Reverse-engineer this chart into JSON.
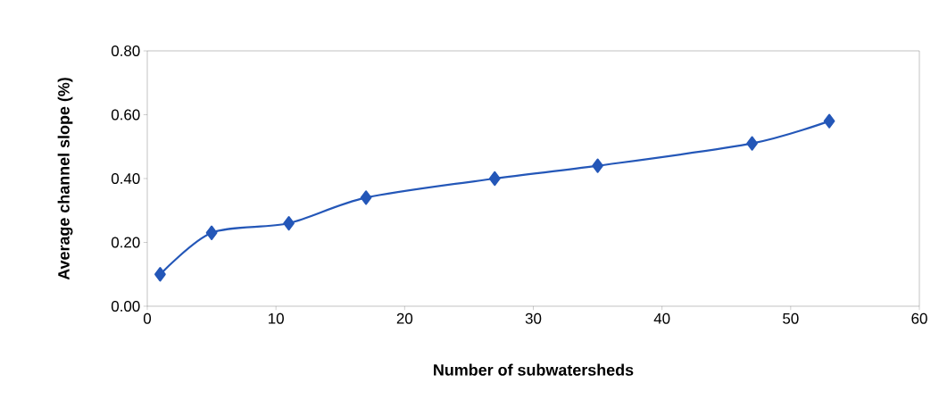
{
  "chart_data": {
    "type": "line",
    "xlabel": "Number of subwatersheds",
    "ylabel": "Average channel slope (%)",
    "x": [
      1,
      5,
      11,
      17,
      27,
      35,
      47,
      53
    ],
    "series": [
      {
        "color": "#2457b8",
        "values": [
          0.1,
          0.23,
          0.26,
          0.34,
          0.4,
          0.44,
          0.51,
          0.58
        ]
      }
    ],
    "xlim": [
      0,
      60
    ],
    "xticks": [
      0,
      10,
      20,
      30,
      40,
      50,
      60
    ],
    "ylim": [
      0,
      0.8
    ],
    "yticks": [
      {
        "value": 0,
        "label": "0.00"
      },
      {
        "value": 0.2,
        "label": "0.20"
      },
      {
        "value": 0.4,
        "label": "0.40"
      },
      {
        "value": 0.6,
        "label": "0.60"
      },
      {
        "value": 0.8,
        "label": "0.80"
      }
    ],
    "marker": "diamond",
    "line_style": "solid"
  }
}
